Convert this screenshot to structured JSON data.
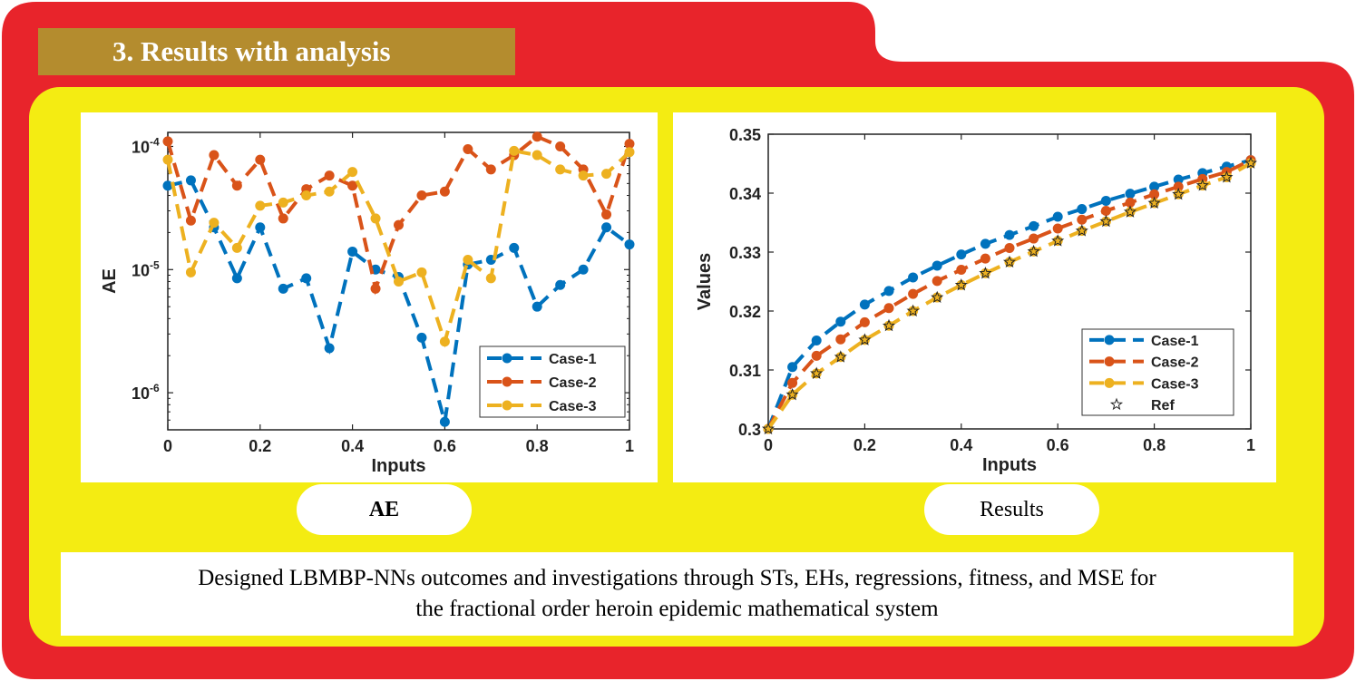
{
  "section": {
    "title": "3. Results with analysis"
  },
  "labels": {
    "left_pill": "AE",
    "right_pill": "Results"
  },
  "caption": {
    "line1": "Designed LBMBP-NNs outcomes and investigations through STs, EHs, regressions, fitness, and MSE for",
    "line2": "the fractional order heroin epidemic mathematical system"
  },
  "colors": {
    "frame": "#e8242b",
    "panel": "#f4ec12",
    "banner": "#b48c2e",
    "case1": "#0072bd",
    "case2": "#d95319",
    "case3": "#edb120"
  },
  "chart_data": [
    {
      "type": "line",
      "xlabel": "Inputs",
      "ylabel": "AE",
      "yscale": "log",
      "xlim": [
        0,
        1
      ],
      "ylim": [
        5e-07,
        0.00013
      ],
      "xticks": [
        "0",
        "0.2",
        "0.4",
        "0.6",
        "0.8",
        "1"
      ],
      "yticks": [
        {
          "value": 1e-06,
          "base": "10",
          "exp": "-6"
        },
        {
          "value": 1e-05,
          "base": "10",
          "exp": "-5"
        },
        {
          "value": 0.0001,
          "base": "10",
          "exp": "-4"
        }
      ],
      "legend_position": "bottom-right",
      "x": [
        0,
        0.05,
        0.1,
        0.15,
        0.2,
        0.25,
        0.3,
        0.35,
        0.4,
        0.45,
        0.5,
        0.55,
        0.6,
        0.65,
        0.7,
        0.75,
        0.8,
        0.85,
        0.9,
        0.95,
        1
      ],
      "series": [
        {
          "name": "Case-1",
          "color": "#0072bd",
          "values": [
            4.8e-05,
            5.3e-05,
            2.2e-05,
            8.5e-06,
            2.2e-05,
            7e-06,
            8.5e-06,
            2.3e-06,
            1.4e-05,
            1e-05,
            8.7e-06,
            2.8e-06,
            5.8e-07,
            1.1e-05,
            1.2e-05,
            1.5e-05,
            5e-06,
            7.5e-06,
            1e-05,
            2.2e-05,
            1.6e-05
          ]
        },
        {
          "name": "Case-2",
          "color": "#d95319",
          "values": [
            0.00011,
            2.5e-05,
            8.5e-05,
            4.8e-05,
            7.8e-05,
            2.6e-05,
            4.5e-05,
            5.8e-05,
            4.8e-05,
            7e-06,
            2.3e-05,
            4e-05,
            4.3e-05,
            9.5e-05,
            6.5e-05,
            8.5e-05,
            0.00012,
            0.0001,
            6.5e-05,
            2.8e-05,
            0.000105
          ]
        },
        {
          "name": "Case-3",
          "color": "#edb120",
          "values": [
            7.8e-05,
            9.5e-06,
            2.4e-05,
            1.5e-05,
            3.3e-05,
            3.5e-05,
            4e-05,
            4.3e-05,
            6.2e-05,
            2.6e-05,
            8e-06,
            9.5e-06,
            2.6e-06,
            1.2e-05,
            8.5e-06,
            9.2e-05,
            8.5e-05,
            6.5e-05,
            5.8e-05,
            6e-05,
            9e-05
          ]
        }
      ]
    },
    {
      "type": "line",
      "xlabel": "Inputs",
      "ylabel": "Values",
      "xlim": [
        0,
        1
      ],
      "ylim": [
        0.3,
        0.35
      ],
      "xticks": [
        "0",
        "0.2",
        "0.4",
        "0.6",
        "0.8",
        "1"
      ],
      "yticks": [
        "0.3",
        "0.31",
        "0.32",
        "0.33",
        "0.34",
        "0.35"
      ],
      "legend_position": "bottom-right",
      "x": [
        0,
        0.05,
        0.1,
        0.15,
        0.2,
        0.25,
        0.3,
        0.35,
        0.4,
        0.45,
        0.5,
        0.55,
        0.6,
        0.65,
        0.7,
        0.75,
        0.8,
        0.85,
        0.9,
        0.95,
        1
      ],
      "series": [
        {
          "name": "Case-1",
          "color": "#0072bd",
          "values": [
            0.3,
            0.3105,
            0.315,
            0.3182,
            0.3211,
            0.3234,
            0.3257,
            0.3277,
            0.3296,
            0.3314,
            0.3329,
            0.3344,
            0.336,
            0.3373,
            0.3387,
            0.3399,
            0.3411,
            0.3423,
            0.3434,
            0.3445,
            0.3456
          ]
        },
        {
          "name": "Case-2",
          "color": "#d95319",
          "values": [
            0.3,
            0.3078,
            0.3124,
            0.3152,
            0.3181,
            0.3205,
            0.3229,
            0.3251,
            0.327,
            0.3289,
            0.3307,
            0.3323,
            0.334,
            0.3355,
            0.337,
            0.3384,
            0.3398,
            0.3411,
            0.3424,
            0.3436,
            0.3456
          ]
        },
        {
          "name": "Case-3",
          "color": "#edb120",
          "values": [
            0.3,
            0.3058,
            0.3094,
            0.3122,
            0.3151,
            0.3175,
            0.32,
            0.3223,
            0.3244,
            0.3264,
            0.3283,
            0.3301,
            0.3319,
            0.3336,
            0.3352,
            0.3368,
            0.3383,
            0.3398,
            0.3413,
            0.3427,
            0.3451
          ]
        },
        {
          "name": "Ref",
          "color": "#000000",
          "marker": "star",
          "values": [
            0.3,
            0.3058,
            0.3094,
            0.3122,
            0.3151,
            0.3175,
            0.32,
            0.3223,
            0.3244,
            0.3264,
            0.3283,
            0.3301,
            0.3319,
            0.3336,
            0.3352,
            0.3368,
            0.3383,
            0.3398,
            0.3413,
            0.3427,
            0.3451
          ]
        }
      ]
    }
  ]
}
